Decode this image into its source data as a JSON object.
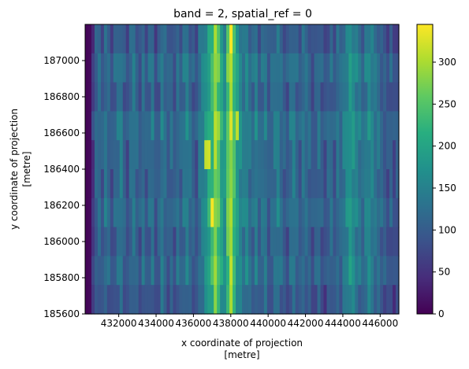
{
  "chart_data": {
    "type": "heatmap",
    "title": "band = 2, spatial_ref = 0",
    "xlabel_line1": "x coordinate of projection",
    "xlabel_line2": "[metre]",
    "ylabel_line1": "y coordinate of projection",
    "ylabel_line2": "[metre]",
    "xlim": [
      430200,
      447000
    ],
    "ylim": [
      185600,
      187200
    ],
    "xticks": [
      {
        "value": 432000,
        "label": "432000"
      },
      {
        "value": 434000,
        "label": "434000"
      },
      {
        "value": 436000,
        "label": "436000"
      },
      {
        "value": 438000,
        "label": "438000"
      },
      {
        "value": 440000,
        "label": "440000"
      },
      {
        "value": 442000,
        "label": "442000"
      },
      {
        "value": 444000,
        "label": "444000"
      },
      {
        "value": 446000,
        "label": "446000"
      }
    ],
    "yticks": [
      {
        "value": 185600,
        "label": "185600"
      },
      {
        "value": 185800,
        "label": "185800"
      },
      {
        "value": 186000,
        "label": "186000"
      },
      {
        "value": 186200,
        "label": "186200"
      },
      {
        "value": 186400,
        "label": "186400"
      },
      {
        "value": 186600,
        "label": "186600"
      },
      {
        "value": 186800,
        "label": "186800"
      },
      {
        "value": 187000,
        "label": "187000"
      }
    ],
    "colorbar": {
      "colormap": "viridis",
      "min": 0,
      "max": 345,
      "ticks": [
        {
          "value": 0,
          "label": "0"
        },
        {
          "value": 50,
          "label": "50"
        },
        {
          "value": 100,
          "label": "100"
        },
        {
          "value": 150,
          "label": "150"
        },
        {
          "value": 200,
          "label": "200"
        },
        {
          "value": 250,
          "label": "250"
        },
        {
          "value": 300,
          "label": "300"
        }
      ]
    },
    "grid": {
      "n_columns": 100,
      "n_rows": 10,
      "note_rows_order": "top to bottom, each row value spans 160 m in y",
      "column_profile": [
        5,
        8,
        60,
        110,
        120,
        95,
        130,
        115,
        90,
        110,
        125,
        140,
        105,
        85,
        120,
        135,
        110,
        95,
        125,
        100,
        115,
        130,
        90,
        105,
        140,
        120,
        100,
        115,
        95,
        125,
        110,
        130,
        145,
        120,
        105,
        90,
        135,
        150,
        175,
        210,
        230,
        290,
        250,
        200,
        175,
        260,
        300,
        240,
        185,
        160,
        140,
        155,
        130,
        120,
        145,
        110,
        125,
        135,
        100,
        115,
        130,
        145,
        120,
        105,
        95,
        125,
        140,
        115,
        100,
        130,
        120,
        110,
        90,
        105,
        125,
        100,
        85,
        110,
        120,
        95,
        130,
        115,
        140,
        160,
        180,
        170,
        150,
        135,
        120,
        145,
        160,
        150,
        130,
        125,
        110,
        100,
        90,
        105,
        80,
        95
      ],
      "row_offsets": [
        -15,
        5,
        -10,
        10,
        0,
        -5,
        5,
        -10,
        0,
        -20
      ],
      "highlights": [
        {
          "row": 0,
          "col": 41,
          "value": 300
        },
        {
          "row": 0,
          "col": 46,
          "value": 345
        },
        {
          "row": 3,
          "col": 42,
          "value": 290
        },
        {
          "row": 3,
          "col": 48,
          "value": 310
        },
        {
          "row": 4,
          "col": 38,
          "value": 315
        },
        {
          "row": 4,
          "col": 39,
          "value": 320
        },
        {
          "row": 6,
          "col": 40,
          "value": 340
        },
        {
          "row": 8,
          "col": 45,
          "value": 220
        }
      ]
    }
  }
}
